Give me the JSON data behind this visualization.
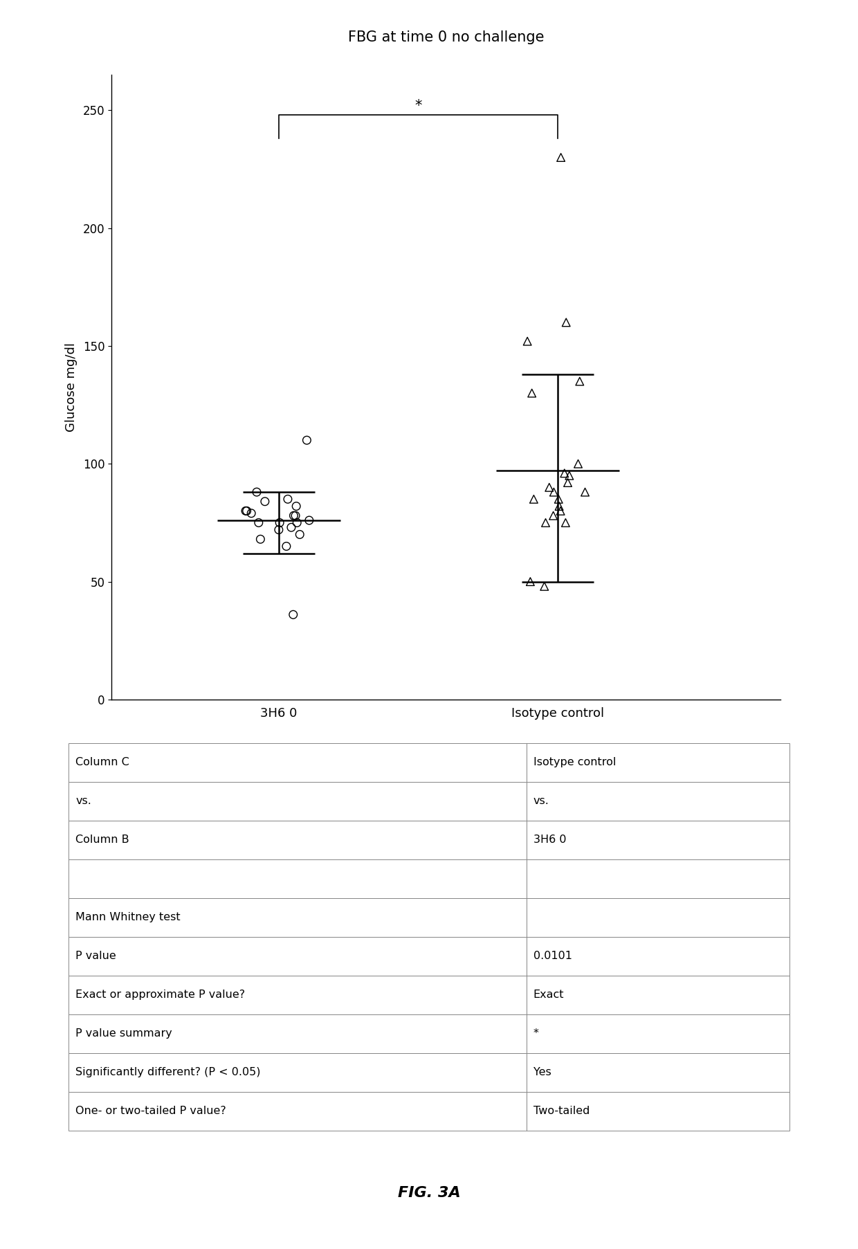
{
  "title": "FBG at time 0 no challenge",
  "ylabel": "Glucose mg/dl",
  "group1_label": "3H6 0",
  "group2_label": "Isotype control",
  "group1_data": [
    75,
    80,
    85,
    78,
    72,
    68,
    75,
    82,
    88,
    79,
    73,
    76,
    80,
    75,
    70,
    65,
    78,
    84,
    110,
    36
  ],
  "group2_data": [
    80,
    85,
    90,
    95,
    88,
    78,
    75,
    85,
    92,
    96,
    100,
    82,
    88,
    75,
    50,
    48,
    130,
    135,
    152,
    160,
    230
  ],
  "group1_mean": 76,
  "group1_sd_upper": 88,
  "group1_sd_lower": 62,
  "group2_mean": 97,
  "group2_sd_upper": 138,
  "group2_sd_lower": 50,
  "sig_label": "*",
  "ylim_min": 0,
  "ylim_max": 265,
  "yticks": [
    0,
    50,
    100,
    150,
    200,
    250
  ],
  "background_color": "#ffffff",
  "table_data": [
    [
      "Column C",
      "Isotype control"
    ],
    [
      "vs.",
      "vs."
    ],
    [
      "Column B",
      "3H6 0"
    ],
    [
      "",
      ""
    ],
    [
      "Mann Whitney test",
      ""
    ],
    [
      "P value",
      "0.0101"
    ],
    [
      "Exact or approximate P value?",
      "Exact"
    ],
    [
      "P value summary",
      "*"
    ],
    [
      "Significantly different? (P < 0.05)",
      "Yes"
    ],
    [
      "One- or two-tailed P value?",
      "Two-tailed"
    ]
  ],
  "figure_label": "FIG. 3A"
}
